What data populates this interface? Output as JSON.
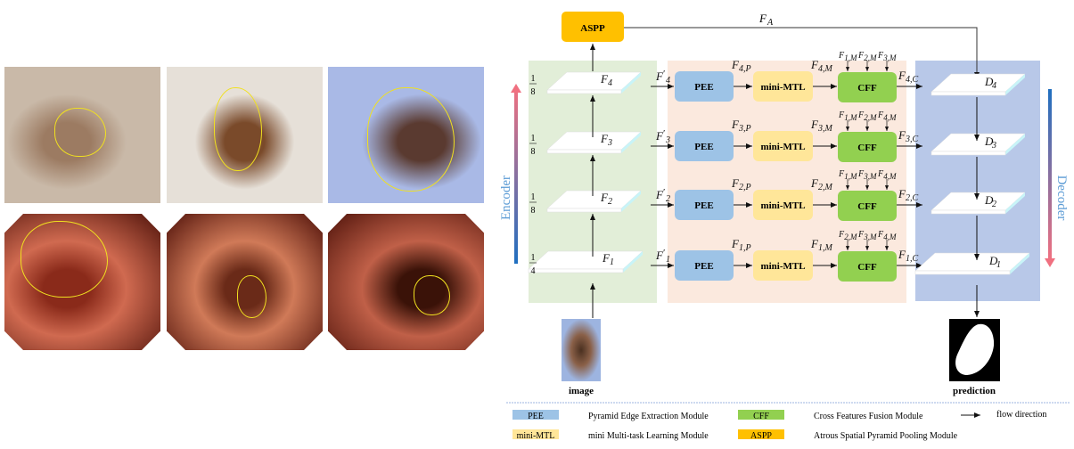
{
  "photos": [
    {
      "kind": "dermoscopy-hair",
      "colors": [
        "#c9b9a8",
        "#9c7b62"
      ]
    },
    {
      "kind": "dermoscopy-bright",
      "colors": [
        "#e6e0d8",
        "#7a4a2a"
      ]
    },
    {
      "kind": "dermoscopy-blue",
      "colors": [
        "#a9b9e6",
        "#5a3a30"
      ]
    },
    {
      "kind": "colonoscopy",
      "colors": [
        "#d06a50",
        "#8a2a1a"
      ]
    },
    {
      "kind": "colonoscopy",
      "colors": [
        "#d07a58",
        "#6a2a18"
      ]
    },
    {
      "kind": "colonoscopy",
      "colors": [
        "#c06048",
        "#3a1208"
      ]
    }
  ],
  "colors": {
    "encoder_bg": "#e2eed8",
    "fusion_bg": "#fbe9de",
    "decoder_bg": "#b8c8e8",
    "pee": "#9dc3e6",
    "mini_mtl": "#ffe699",
    "cff": "#92d050",
    "aspp": "#ffc000",
    "contour": "#f0e020"
  },
  "aspp": {
    "label": "ASPP",
    "output": {
      "main": "F",
      "sub": "A"
    }
  },
  "encoder_label": "Encoder",
  "decoder_label": "Decoder",
  "rows": [
    {
      "scale": {
        "num": "1",
        "den": "8"
      },
      "enc": "4",
      "prime": "4",
      "p": "4,P",
      "m": "4,M",
      "c": "4,C",
      "inputs": [
        "1,M",
        "2,M",
        "3,M"
      ],
      "dec": "4"
    },
    {
      "scale": {
        "num": "1",
        "den": "8"
      },
      "enc": "3",
      "prime": "3",
      "p": "3,P",
      "m": "3,M",
      "c": "3,C",
      "inputs": [
        "1,M",
        "2,M",
        "4,M"
      ],
      "dec": "3"
    },
    {
      "scale": {
        "num": "1",
        "den": "8"
      },
      "enc": "2",
      "prime": "2",
      "p": "2,P",
      "m": "2,M",
      "c": "2,C",
      "inputs": [
        "1,M",
        "3,M",
        "4,M"
      ],
      "dec": "2"
    },
    {
      "scale": {
        "num": "1",
        "den": "4"
      },
      "enc": "1",
      "prime": "1",
      "p": "1,P",
      "m": "1,M",
      "c": "1,C",
      "inputs": [
        "2,M",
        "3,M",
        "4,M"
      ],
      "dec": "1"
    }
  ],
  "modules": {
    "pee": "PEE",
    "mini_mtl": "mini-MTL",
    "cff": "CFF"
  },
  "letters": {
    "F": "F",
    "D": "D",
    "prime": "′"
  },
  "image_label": "image",
  "prediction_label": "prediction",
  "legend": [
    {
      "key": "PEE",
      "desc": "Pyramid Edge Extraction Module",
      "color": "#9dc3e6"
    },
    {
      "key": "CFF",
      "desc": "Cross Features Fusion Module",
      "color": "#92d050"
    },
    {
      "key": "mini-MTL",
      "desc": "mini Multi-task Learning Module",
      "color": "#ffe699"
    },
    {
      "key": "ASPP",
      "desc": "Atrous Spatial Pyramid Pooling Module",
      "color": "#ffc000"
    }
  ],
  "legend_flow": "flow direction"
}
